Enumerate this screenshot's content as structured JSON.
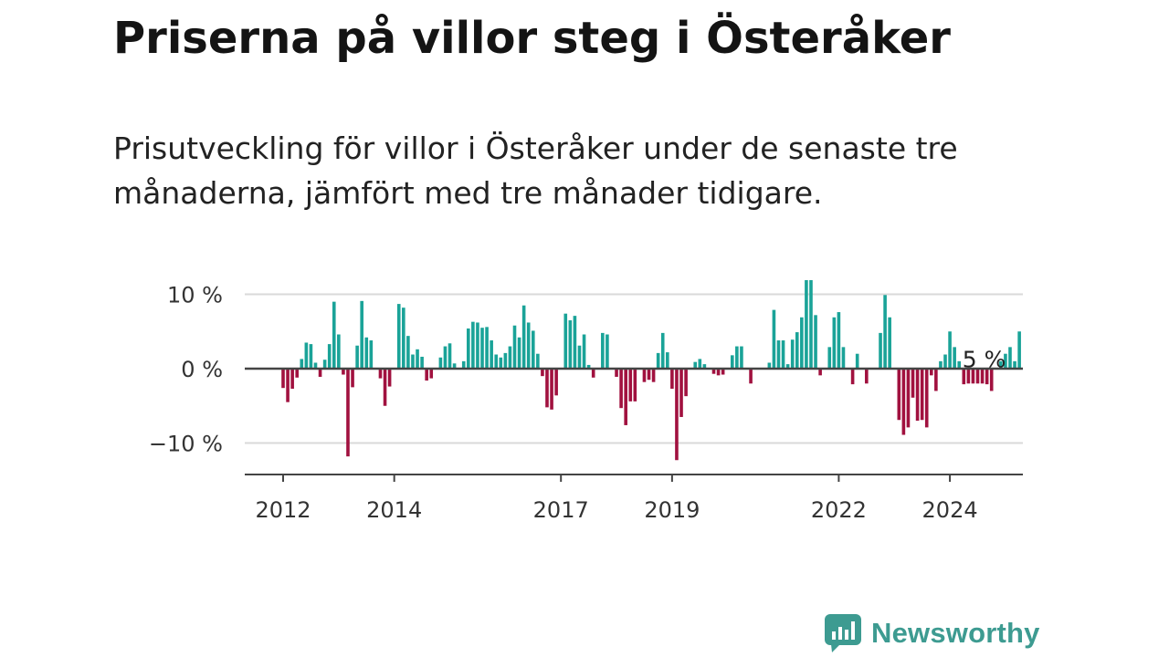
{
  "header": {
    "title": "Priserna på villor steg i Österåker",
    "subtitle": "Prisutveckling för villor i Österåker under de senaste tre månaderna, jämfört med tre månader tidigare."
  },
  "branding": {
    "name": "Newsworthy"
  },
  "colors": {
    "positive": "#1aa398",
    "negative": "#a1113f",
    "grid": "#d9d9d9",
    "axis": "#444444",
    "brand": "#3d9b91"
  },
  "chart_data": {
    "type": "bar",
    "title": "Priserna på villor steg i Österåker",
    "xlabel": "",
    "ylabel": "",
    "ylim": [
      -14,
      12
    ],
    "yticks": [
      {
        "value": 10,
        "label": "10 %"
      },
      {
        "value": 0,
        "label": "0 %"
      },
      {
        "value": -10,
        "label": "−10 %"
      }
    ],
    "xticks": [
      {
        "index": 0,
        "label": "2012"
      },
      {
        "index": 24,
        "label": "2014"
      },
      {
        "index": 60,
        "label": "2017"
      },
      {
        "index": 84,
        "label": "2019"
      },
      {
        "index": 120,
        "label": "2022"
      },
      {
        "index": 144,
        "label": "2024"
      }
    ],
    "x_start": "2012-01",
    "annotation": {
      "index": 151,
      "label": "5 %"
    },
    "values": [
      -2.6,
      -4.5,
      -2.7,
      -1.2,
      1.3,
      3.5,
      3.3,
      0.8,
      -1.1,
      1.2,
      3.3,
      9.0,
      4.6,
      -0.8,
      -11.8,
      -2.5,
      3.1,
      9.1,
      4.2,
      3.8,
      0,
      -1.3,
      -5.0,
      -2.4,
      0,
      8.7,
      8.2,
      4.4,
      1.9,
      2.6,
      1.6,
      -1.6,
      -1.3,
      0,
      1.5,
      3.0,
      3.4,
      0.7,
      0,
      1.0,
      5.4,
      6.3,
      6.2,
      5.5,
      5.6,
      3.8,
      1.9,
      1.5,
      2.1,
      3.0,
      5.8,
      4.2,
      8.5,
      6.2,
      5.1,
      2.0,
      -1.0,
      -5.2,
      -5.5,
      -3.6,
      0,
      7.4,
      6.5,
      7.1,
      3.1,
      4.6,
      0.5,
      -1.2,
      0,
      4.8,
      4.6,
      0,
      -1.1,
      -5.3,
      -7.6,
      -4.4,
      -4.4,
      0,
      -1.8,
      -1.5,
      -1.8,
      2.1,
      4.8,
      2.2,
      -2.7,
      -12.3,
      -6.5,
      -3.7,
      0,
      0.9,
      1.3,
      0.6,
      0,
      -0.7,
      -0.9,
      -0.8,
      0,
      1.8,
      3.0,
      3.0,
      0,
      -2.0,
      0,
      0,
      0,
      0.8,
      7.9,
      3.8,
      3.8,
      0.6,
      3.9,
      4.9,
      6.9,
      11.9,
      11.9,
      7.2,
      -0.9,
      0,
      2.9,
      6.9,
      7.6,
      2.9,
      0,
      -2.1,
      2.0,
      0,
      -2.0,
      0,
      0,
      4.8,
      9.9,
      6.9,
      0,
      -6.9,
      -8.9,
      -7.9,
      -3.9,
      -7.0,
      -6.9,
      -7.9,
      -0.9,
      -3.0,
      1.0,
      1.9,
      5.0,
      2.9,
      1.0,
      -2.1,
      -2.0,
      -2.0,
      -2.0,
      -2.0,
      -2.1,
      -3.0,
      0,
      1.0,
      2.0,
      2.9,
      1.0,
      5.0
    ]
  }
}
